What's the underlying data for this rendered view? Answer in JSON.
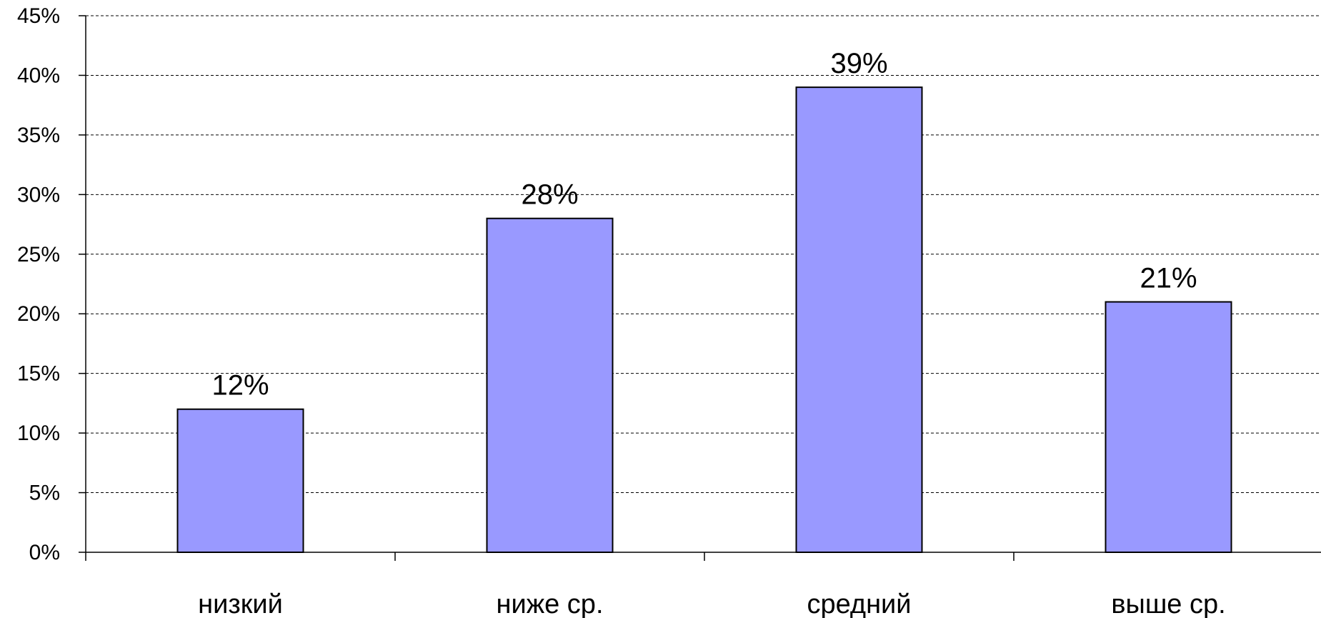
{
  "chart_data": {
    "type": "bar",
    "categories": [
      "низкий",
      "ниже ср.",
      "средний",
      "выше ср."
    ],
    "values": [
      12,
      28,
      39,
      21
    ],
    "data_labels": [
      "12%",
      "28%",
      "39%",
      "21%"
    ],
    "ylim": [
      0,
      45
    ],
    "yticks": [
      0,
      5,
      10,
      15,
      20,
      25,
      30,
      35,
      40,
      45
    ],
    "ytick_labels": [
      "0%",
      "5%",
      "10%",
      "15%",
      "20%",
      "25%",
      "30%",
      "35%",
      "40%",
      "45%"
    ],
    "grid": true,
    "legend": "none",
    "colors": {
      "bar_fill": "#9999ff",
      "bar_stroke": "#000000",
      "grid": "#000000",
      "axis": "#000000"
    }
  }
}
